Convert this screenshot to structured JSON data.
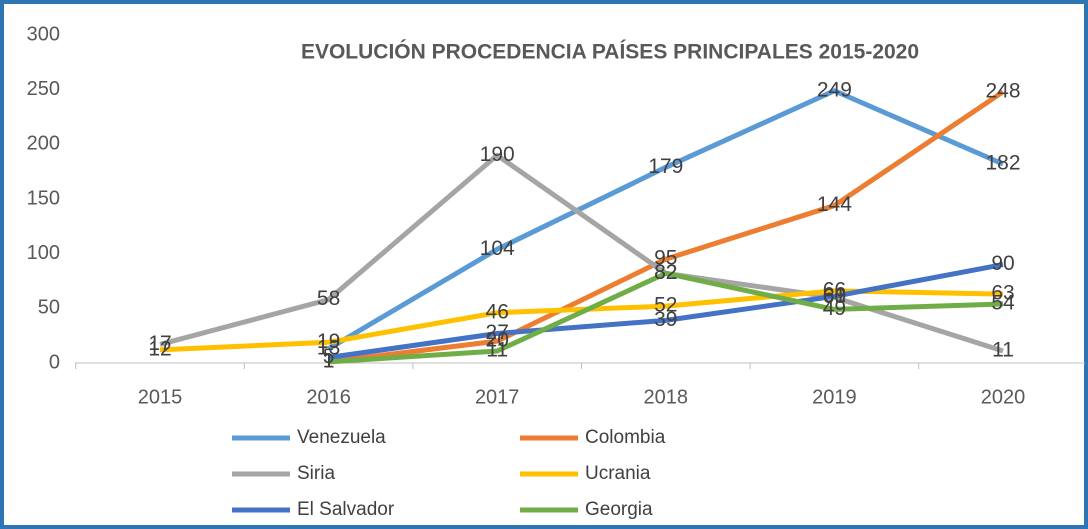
{
  "chart_data": {
    "type": "line",
    "title": "EVOLUCIÓN PROCEDENCIA PAÍSES PRINCIPALES  2015-2020",
    "categories": [
      "2015",
      "2016",
      "2017",
      "2018",
      "2019",
      "2020"
    ],
    "series": [
      {
        "name": "Venezuela",
        "color": "#5b9bd5",
        "values": [
          null,
          13,
          104,
          179,
          249,
          182
        ]
      },
      {
        "name": "Colombia",
        "color": "#ed7d31",
        "values": [
          null,
          1,
          20,
          95,
          144,
          248
        ]
      },
      {
        "name": "Siria",
        "color": "#a5a5a5",
        "values": [
          17,
          58,
          190,
          82,
          60,
          11
        ]
      },
      {
        "name": "Ucrania",
        "color": "#ffc000",
        "values": [
          12,
          19,
          46,
          52,
          66,
          63
        ]
      },
      {
        "name": "El Salvador",
        "color": "#4472c4",
        "values": [
          null,
          5,
          27,
          39,
          61,
          90
        ]
      },
      {
        "name": "Georgia",
        "color": "#70ad47",
        "values": [
          null,
          1,
          11,
          82,
          49,
          54
        ]
      }
    ],
    "ylim": [
      0,
      300
    ],
    "yticks": [
      0,
      50,
      100,
      150,
      200,
      250,
      300
    ],
    "grid": false,
    "legend": "bottom"
  }
}
